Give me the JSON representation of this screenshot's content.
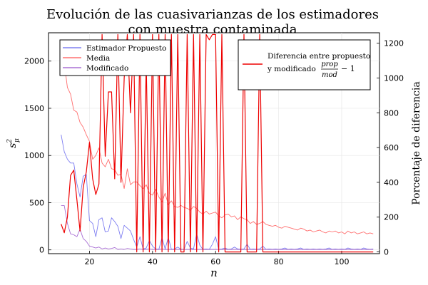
{
  "chart_data": {
    "type": "line",
    "title": "Evolución de las cuasivarianzas de los estimadores",
    "subtitle": "con muestra contaminada",
    "xlabel": "n",
    "ylabel_left": "s",
    "ylabel_left_superscript": "2",
    "ylabel_left_subscript": "μ",
    "ylabel_right": "Porcentaje de diferencia",
    "xlim": [
      7,
      112
    ],
    "ylim_left": [
      -40,
      2300
    ],
    "ylim_right": [
      -10,
      1260
    ],
    "x_ticks": [
      "20",
      "40",
      "60",
      "80",
      "100"
    ],
    "y_left_ticks": [
      "0",
      "500",
      "1000",
      "1500",
      "2000"
    ],
    "y_right_ticks": [
      "0",
      "200",
      "400",
      "600",
      "800",
      "1000",
      "1200"
    ],
    "grid": true,
    "legend_left": {
      "placement": "top-left",
      "entries": [
        "Estimador Propuesto",
        "Media",
        "Modificado"
      ]
    },
    "legend_right": {
      "placement": "top-right",
      "entry_line1": "Diferencia entre propuesto",
      "entry_line2_prefix": "y modificado",
      "frac_num": "prop",
      "frac_den": "mod",
      "entry_suffix": "− 1"
    },
    "x": [
      11,
      12,
      13,
      14,
      15,
      16,
      17,
      18,
      19,
      20,
      21,
      22,
      23,
      24,
      25,
      26,
      27,
      28,
      29,
      30,
      31,
      32,
      33,
      34,
      35,
      36,
      37,
      38,
      39,
      40,
      41,
      42,
      43,
      44,
      45,
      46,
      47,
      48,
      49,
      50,
      51,
      52,
      53,
      54,
      55,
      56,
      57,
      58,
      59,
      60,
      61,
      62,
      63,
      64,
      65,
      66,
      67,
      68,
      69,
      70,
      71,
      72,
      73,
      74,
      75,
      76,
      77,
      78,
      79,
      80,
      81,
      82,
      83,
      84,
      85,
      86,
      87,
      88,
      89,
      90,
      91,
      92,
      93,
      94,
      95,
      96,
      97,
      98,
      99,
      100,
      101,
      102,
      103,
      104,
      105,
      106,
      107,
      108,
      109,
      110
    ],
    "series": [
      {
        "name": "Estimador Propuesto",
        "axis": "left",
        "color": "#6666ee",
        "values": [
          1220,
          1040,
          960,
          920,
          920,
          700,
          560,
          780,
          800,
          310,
          280,
          140,
          320,
          340,
          190,
          200,
          340,
          300,
          250,
          120,
          260,
          230,
          200,
          110,
          30,
          140,
          10,
          20,
          100,
          40,
          10,
          5,
          130,
          10,
          130,
          5,
          10,
          30,
          5,
          5,
          90,
          20,
          10,
          170,
          50,
          5,
          10,
          5,
          60,
          140,
          5,
          10,
          20,
          5,
          10,
          30,
          10,
          5,
          10,
          60,
          5,
          10,
          5,
          10,
          40,
          5,
          10,
          5,
          10,
          5,
          10,
          20,
          5,
          10,
          5,
          10,
          20,
          5,
          10,
          5,
          10,
          5,
          10,
          5,
          10,
          20,
          5,
          10,
          5,
          10,
          5,
          20,
          10,
          5,
          10,
          5,
          20,
          10,
          5,
          10
        ]
      },
      {
        "name": "Media",
        "axis": "left",
        "color": "#ff5555",
        "values": [
          2220,
          1980,
          1720,
          1650,
          1480,
          1460,
          1350,
          1300,
          1220,
          1150,
          960,
          1000,
          1080,
          920,
          880,
          960,
          860,
          850,
          790,
          800,
          650,
          860,
          690,
          720,
          720,
          680,
          650,
          690,
          600,
          580,
          640,
          560,
          510,
          600,
          480,
          520,
          460,
          450,
          470,
          450,
          440,
          420,
          460,
          440,
          400,
          380,
          410,
          380,
          390,
          400,
          360,
          340,
          370,
          380,
          350,
          360,
          320,
          350,
          330,
          320,
          280,
          300,
          270,
          280,
          300,
          270,
          260,
          250,
          260,
          240,
          230,
          250,
          240,
          230,
          220,
          210,
          230,
          220,
          200,
          210,
          190,
          200,
          210,
          190,
          180,
          200,
          190,
          200,
          180,
          190,
          170,
          200,
          180,
          190,
          170,
          180,
          190,
          170,
          180,
          170
        ]
      },
      {
        "name": "Modificado",
        "axis": "left",
        "color": "#9955cc",
        "values": [
          470,
          470,
          280,
          170,
          160,
          140,
          220,
          120,
          90,
          40,
          30,
          20,
          30,
          10,
          20,
          10,
          15,
          25,
          5,
          10,
          5,
          15,
          10,
          5,
          5,
          10,
          5,
          5,
          10,
          5,
          5,
          5,
          8,
          5,
          5,
          5,
          5,
          5,
          5,
          5,
          5,
          5,
          5,
          5,
          5,
          5,
          5,
          5,
          5,
          5,
          5,
          5,
          5,
          5,
          5,
          5,
          5,
          5,
          5,
          5,
          5,
          5,
          5,
          5,
          5,
          5,
          5,
          5,
          5,
          5,
          5,
          5,
          5,
          5,
          5,
          5,
          5,
          5,
          5,
          5,
          5,
          5,
          5,
          5,
          5,
          5,
          5,
          5,
          5,
          5,
          5,
          5,
          5,
          5,
          5,
          5,
          5,
          5,
          5,
          5
        ]
      },
      {
        "name": "Diferencia entre propuesto y modificado",
        "axis": "right",
        "color": "#ee0000",
        "values": [
          160,
          110,
          200,
          440,
          470,
          300,
          120,
          370,
          460,
          630,
          420,
          330,
          390,
          1250,
          550,
          920,
          920,
          420,
          1250,
          400,
          1000,
          1250,
          800,
          1250,
          0,
          1250,
          0,
          1100,
          0,
          1250,
          0,
          1250,
          0,
          1250,
          0,
          1250,
          0,
          1250,
          0,
          0,
          1250,
          0,
          1250,
          0,
          1250,
          0,
          1250,
          1220,
          1250,
          1250,
          0,
          1250,
          0,
          0,
          0,
          0,
          0,
          0,
          1250,
          0,
          0,
          0,
          0,
          1250,
          0,
          0,
          0,
          0,
          0,
          0,
          0,
          0,
          0,
          0,
          0,
          0,
          0,
          0,
          0,
          0,
          0,
          0,
          0,
          0,
          0,
          0,
          0,
          0,
          0,
          0,
          0,
          0,
          0,
          0,
          0,
          0,
          0,
          0,
          0,
          0
        ]
      }
    ]
  }
}
